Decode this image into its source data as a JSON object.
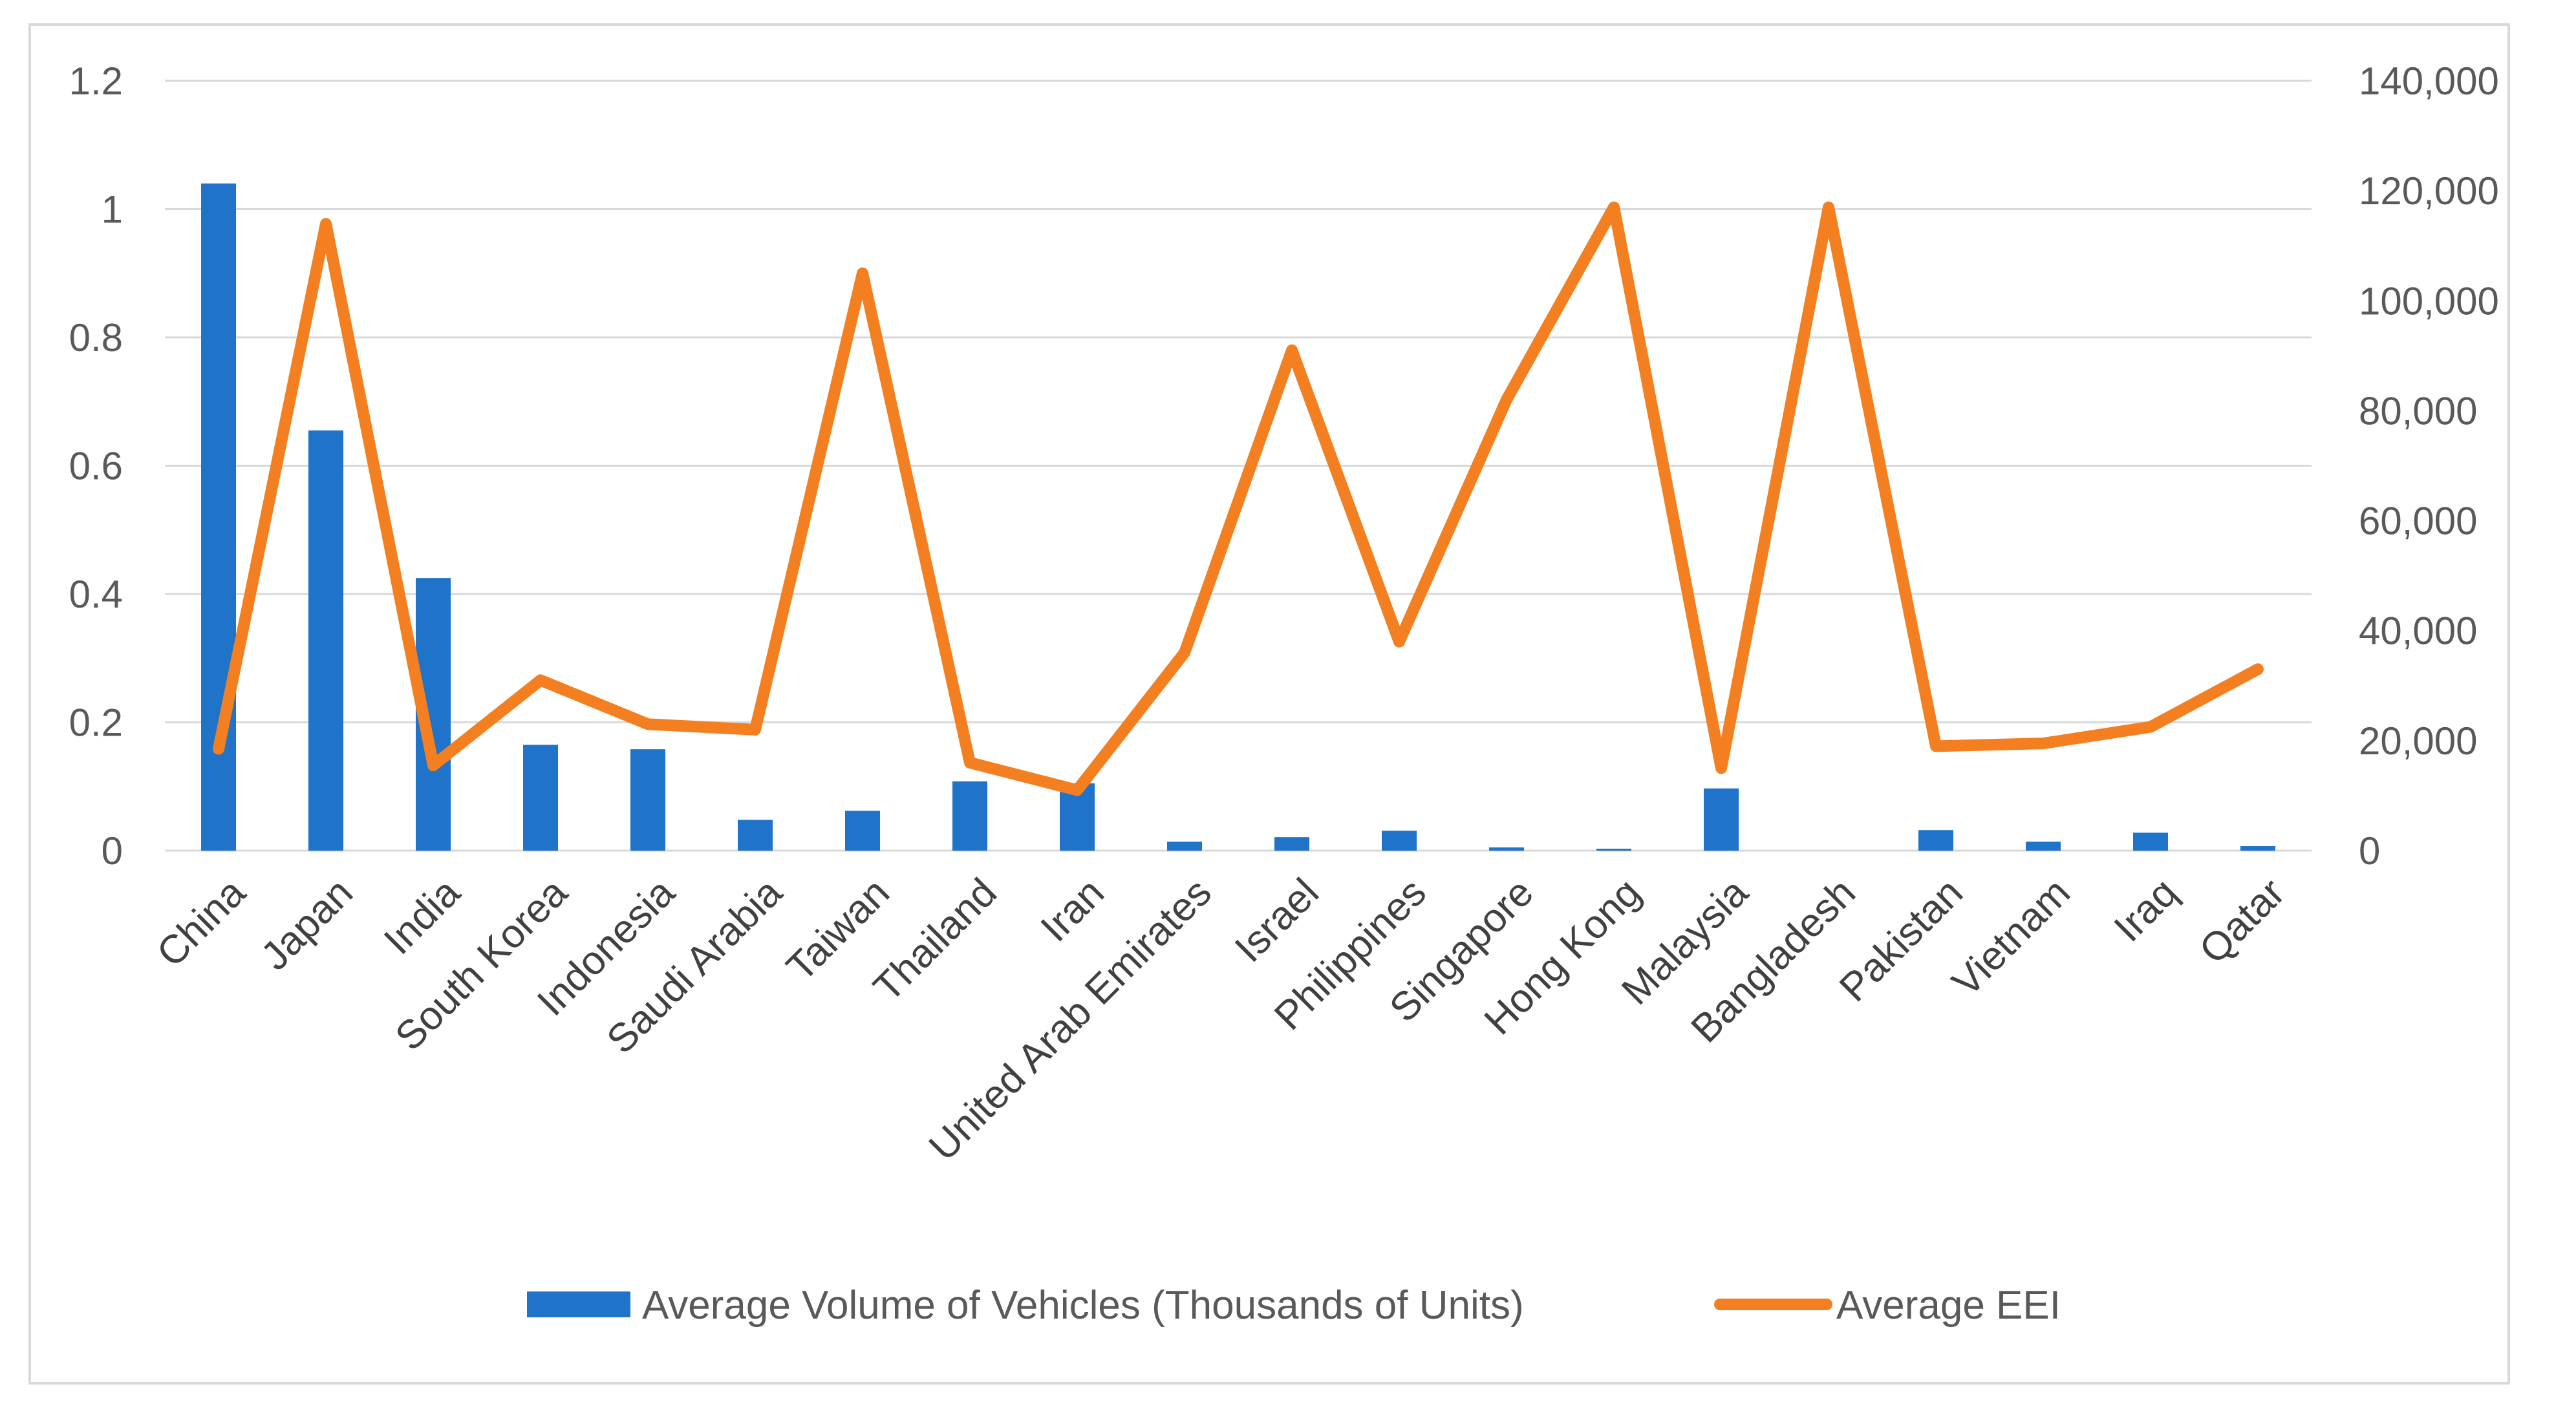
{
  "chart_data": {
    "type": "bar+line",
    "title": "",
    "categories": [
      "China",
      "Japan",
      "India",
      "South Korea",
      "Indonesia",
      "Saudi Arabia",
      "Taiwan",
      "Thailand",
      "Iran",
      "United Arab Emirates",
      "Israel",
      "Philippines",
      "Singapore",
      "Hong Kong",
      "Malaysia",
      "Bangladesh",
      "Pakistan",
      "Vietnam",
      "Iraq",
      "Qatar"
    ],
    "series": [
      {
        "name": "Average Volume of Vehicles (Thousands of Units)",
        "type": "bar",
        "axis": "left",
        "color": "#1f73c9",
        "values": [
          1.04,
          0.655,
          0.425,
          0.165,
          0.158,
          0.048,
          0.062,
          0.108,
          0.105,
          0.014,
          0.021,
          0.031,
          0.005,
          0.003,
          0.097,
          0.0,
          0.032,
          0.014,
          0.028,
          0.007
        ]
      },
      {
        "name": "Average EEI",
        "type": "line",
        "axis": "right",
        "color": "#f47f20",
        "values": [
          18500,
          114000,
          15500,
          31000,
          23000,
          22000,
          105000,
          16000,
          11000,
          36000,
          91000,
          38000,
          82000,
          117000,
          15000,
          117000,
          19000,
          19500,
          22500,
          33000
        ]
      }
    ],
    "left_axis": {
      "min": 0,
      "max": 1.2,
      "ticks": [
        "0",
        "0.2",
        "0.4",
        "0.6",
        "0.8",
        "1",
        "1.2"
      ],
      "tick_values": [
        0,
        0.2,
        0.4,
        0.6,
        0.8,
        1,
        1.2
      ]
    },
    "right_axis": {
      "min": 0,
      "max": 140000,
      "ticks": [
        "0",
        "20,000",
        "40,000",
        "60,000",
        "80,000",
        "100,000",
        "120,000",
        "140,000"
      ],
      "tick_values": [
        0,
        20000,
        40000,
        60000,
        80000,
        100000,
        120000,
        140000
      ]
    },
    "grid": true,
    "legend_position": "bottom"
  }
}
